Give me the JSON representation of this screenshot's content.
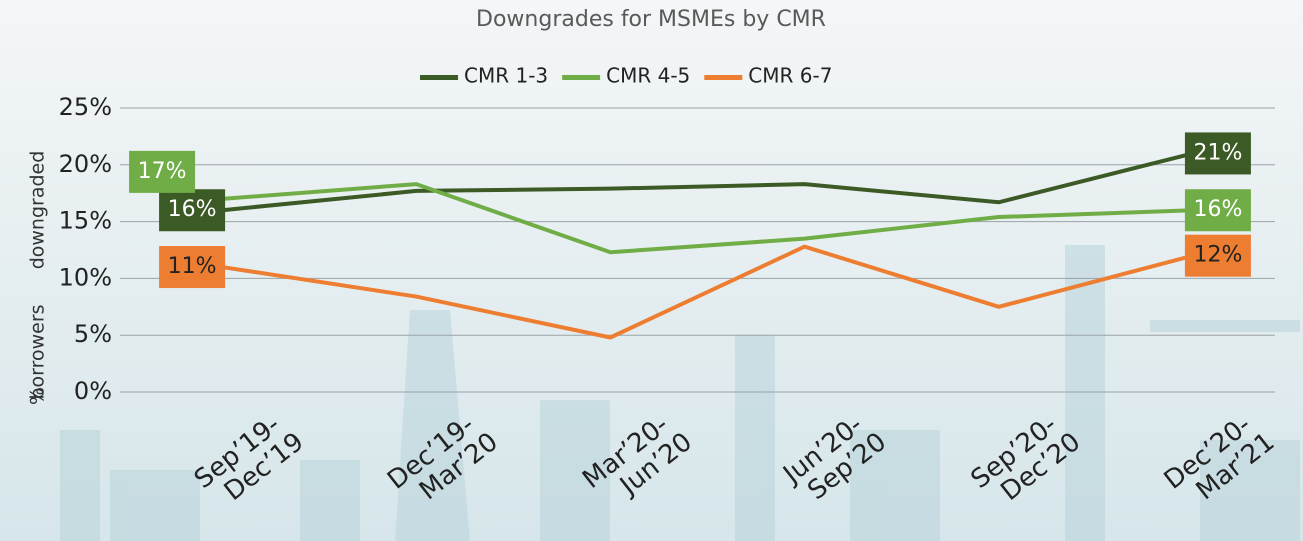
{
  "chart_data": {
    "type": "line",
    "title": "Downgrades for MSMEs by CMR",
    "y_label": [
      "%",
      "borrowers",
      "downgraded"
    ],
    "categories": [
      [
        "Sep’19-",
        "Dec’19"
      ],
      [
        "Dec’19-",
        "Mar’20"
      ],
      [
        "Mar’20-",
        "Jun’20"
      ],
      [
        "Jun’20-",
        "Sep’20"
      ],
      [
        "Sep’20-",
        "Dec’20"
      ],
      [
        "Dec’20-",
        "Mar’21"
      ]
    ],
    "series": [
      {
        "name": "CMR 1-3",
        "color": "#3b5a25",
        "values": [
          16,
          17.7,
          17.9,
          18.3,
          16.7,
          21
        ],
        "value_labels": [
          "16%",
          null,
          null,
          null,
          null,
          "21%"
        ]
      },
      {
        "name": "CMR 4-5",
        "color": "#70ad47",
        "values": [
          17,
          18.3,
          12.3,
          13.5,
          15.4,
          16
        ],
        "value_labels": [
          "17%",
          null,
          null,
          null,
          null,
          "16%"
        ]
      },
      {
        "name": "CMR 6-7",
        "color": "#ed7d31",
        "values": [
          11,
          8.4,
          4.8,
          12.8,
          7.5,
          12
        ],
        "value_labels": [
          "11%",
          null,
          null,
          null,
          null,
          "12%"
        ]
      }
    ],
    "ylim": [
      0,
      25
    ],
    "yticks": [
      {
        "value": 0,
        "label": "0%"
      },
      {
        "value": 5,
        "label": "5%"
      },
      {
        "value": 10,
        "label": "10%"
      },
      {
        "value": 15,
        "label": "15%"
      },
      {
        "value": 20,
        "label": "20%"
      },
      {
        "value": 25,
        "label": "25%"
      }
    ],
    "grid": true,
    "legend": "top"
  }
}
